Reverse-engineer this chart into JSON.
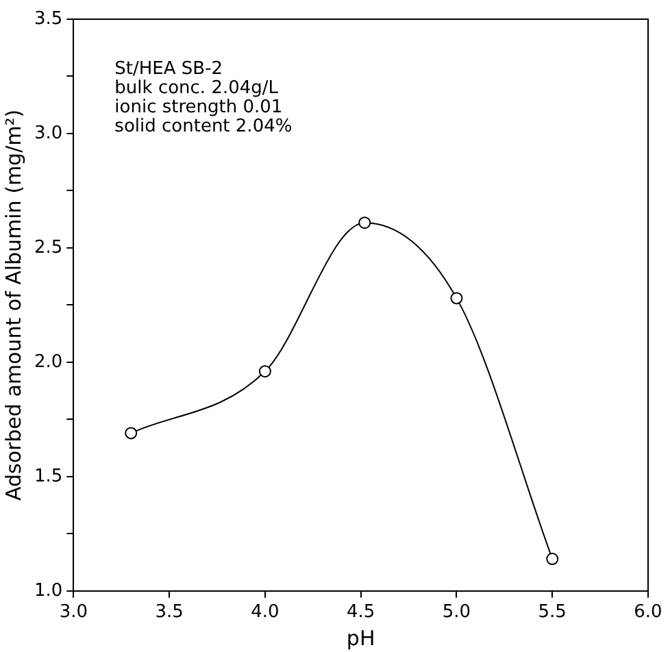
{
  "chart_data": {
    "type": "line",
    "xlabel": "pH",
    "ylabel": "Adsorbed amount of Albumin (mg/m²)",
    "x": [
      3.3,
      4.0,
      4.52,
      5.0,
      5.5
    ],
    "series": [
      {
        "color": "#000000",
        "values": [
          1.69,
          1.96,
          2.61,
          2.28,
          1.14
        ]
      }
    ],
    "xlim": [
      3.0,
      6.0
    ],
    "xticks": [
      {
        "value": 3,
        "label": "3.0"
      },
      3.5,
      {
        "value": 4,
        "label": "4.0"
      },
      4.5,
      {
        "value": 5,
        "label": "5.0"
      },
      5.5,
      {
        "value": 6,
        "label": "6.0"
      }
    ],
    "ylim": [
      1.0,
      3.5
    ],
    "yticks": [
      {
        "value": 1,
        "label": "1.0"
      },
      {
        "value": 1.25,
        "label": null
      },
      1.5,
      {
        "value": 1.75,
        "label": null
      },
      {
        "value": 2,
        "label": "2.0"
      },
      {
        "value": 2.25,
        "label": null
      },
      2.5,
      {
        "value": 2.75,
        "label": null
      },
      {
        "value": 3,
        "label": "3.0"
      },
      {
        "value": 3.25,
        "label": null
      },
      3.5
    ],
    "annotations": [
      "St/HEA SB-2",
      "bulk conc. 2.04g/L",
      "ionic strength 0.01",
      "solid content 2.04%"
    ],
    "marker": "circle",
    "line_style": "solid",
    "grid": false,
    "legend": false
  }
}
